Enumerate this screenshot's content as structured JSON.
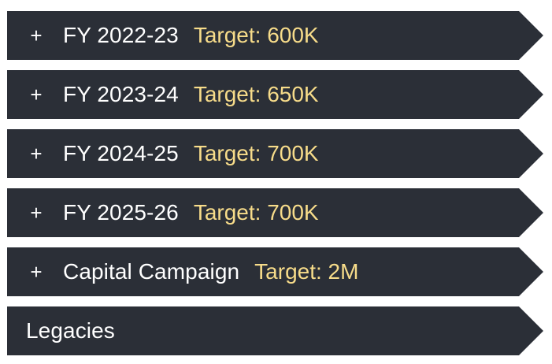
{
  "colors": {
    "row_background": "#2b2f37",
    "label_text": "#ffffff",
    "target_text": "#f7dc8a",
    "page_background": "#ffffff"
  },
  "accordion": {
    "items": [
      {
        "toggle_icon": "plus-icon",
        "toggle": "+",
        "label": "FY 2022-23",
        "target": "Target: 600K"
      },
      {
        "toggle_icon": "plus-icon",
        "toggle": "+",
        "label": "FY 2023-24",
        "target": "Target: 650K"
      },
      {
        "toggle_icon": "plus-icon",
        "toggle": "+",
        "label": "FY 2024-25",
        "target": "Target: 700K"
      },
      {
        "toggle_icon": "plus-icon",
        "toggle": "+",
        "label": "FY 2025-26",
        "target": "Target: 700K"
      },
      {
        "toggle_icon": "plus-icon",
        "toggle": "+",
        "label": "Capital Campaign",
        "target": "Target: 2M"
      },
      {
        "label": "Legacies"
      }
    ]
  }
}
